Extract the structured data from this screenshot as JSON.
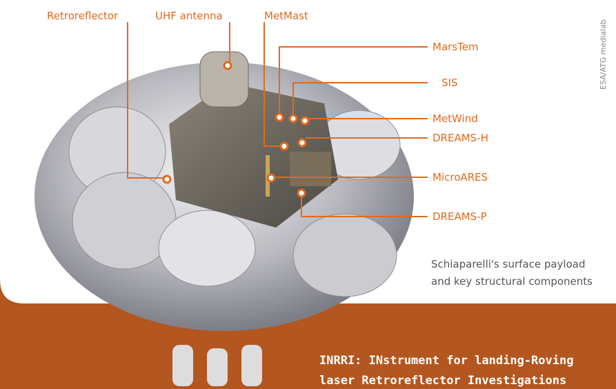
{
  "labels": [
    "Retroreflector",
    "UHF antenna",
    "MetMast",
    "MarsTem",
    "SIS",
    "MetWind",
    "DREAMS-H",
    "MicroARES",
    "DREAMS-P"
  ],
  "credit": "ESA/ATG medialab",
  "caption": [
    "Schiaparelli's surface payload",
    "and key structural components"
  ],
  "footer": [
    "INRRI: INstrument for landing-Roving",
    "laser Retroreflector Investigations"
  ]
}
